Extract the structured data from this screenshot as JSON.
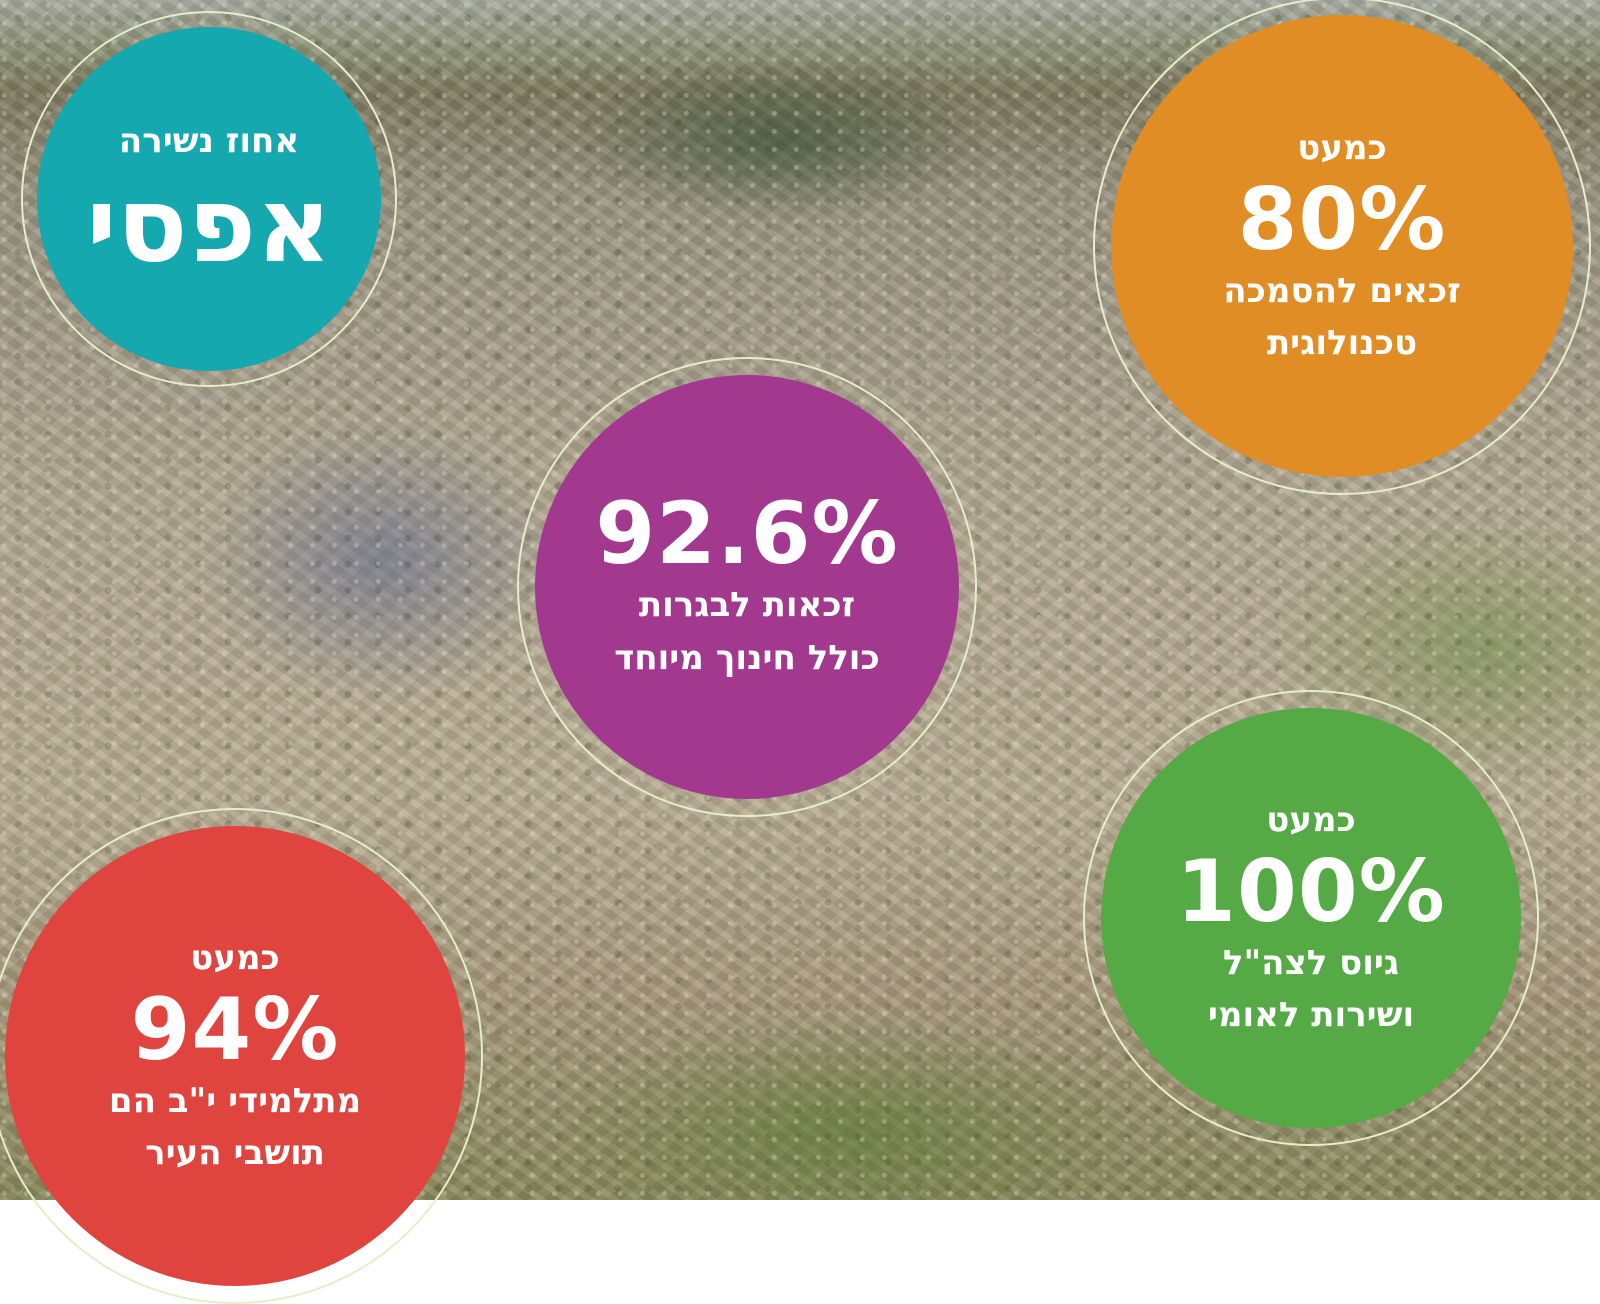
{
  "stats": [
    {
      "id": "dropout",
      "color": "#15a8ae",
      "lines": [
        "אחוז נשירה"
      ],
      "value": "אפסי"
    },
    {
      "id": "tech",
      "color": "#e18d25",
      "lines": [
        "כמעט"
      ],
      "value": "80%",
      "sub": [
        "זכאים להסמכה",
        "טכנולוגית"
      ]
    },
    {
      "id": "bagrut",
      "color": "#a2398f",
      "value": "92.6%",
      "sub": [
        "זכאות לבגרות",
        "כולל חינוך מיוחד"
      ]
    },
    {
      "id": "residents",
      "color": "#e0443f",
      "lines": [
        "כמעט"
      ],
      "value": "94%",
      "sub": [
        "מתלמידי י\"ב הם",
        "תושבי העיר"
      ]
    },
    {
      "id": "army",
      "color": "#56aa45",
      "lines": [
        "כמעט"
      ],
      "value": "100%",
      "sub": [
        "גיוס לצה\"ל",
        "ושירות לאומי"
      ]
    }
  ]
}
